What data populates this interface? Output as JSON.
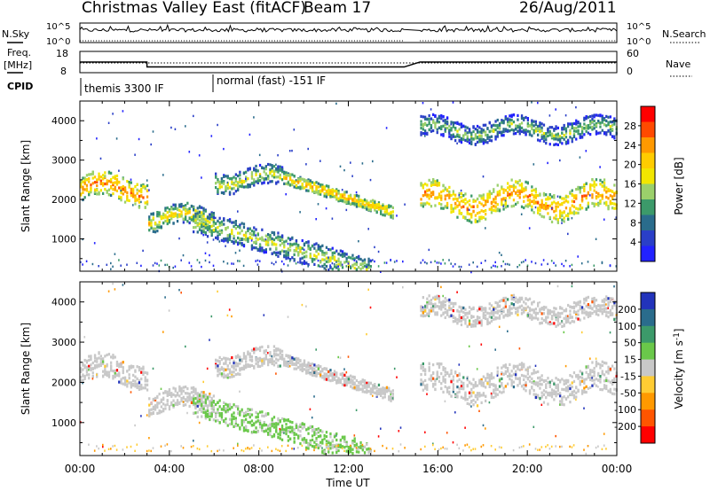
{
  "header": {
    "title": "Christmas Valley East (fitACF)",
    "beam": "Beam 17",
    "date": "26/Aug/2011"
  },
  "params": {
    "nsky_label": "N.Sky",
    "nsearch_label": "N.Search",
    "freq_label_1": "Freq.",
    "freq_label_2": "[MHz]",
    "nave_label": "Nave",
    "cpid_label": "CPID",
    "log_top": "10^5",
    "log_bottom": "10^0",
    "freq_ticks": [
      "18",
      "8"
    ],
    "nave_ticks": [
      "60",
      "0"
    ],
    "cpid_1": "themis 3300 IF",
    "cpid_2": "normal (fast) -151 IF"
  },
  "x_ticks": [
    "00:00",
    "04:00",
    "08:00",
    "12:00",
    "16:00",
    "20:00",
    "00:00"
  ],
  "x_label": "Time UT",
  "y_label": "Slant Range [km]",
  "y_ticks": [
    "4000",
    "3000",
    "2000",
    "1000"
  ],
  "power_scale": {
    "label": "Power [dB]",
    "ticks": [
      "28",
      "24",
      "20",
      "16",
      "12",
      "8",
      "4"
    ],
    "colors": [
      "#ff0000",
      "#ff4a00",
      "#ff9900",
      "#ffcc00",
      "#f2e600",
      "#9bd06b",
      "#3c9a6a",
      "#2a6c8c",
      "#2a3fc8",
      "#2222ff"
    ]
  },
  "velocity_scale": {
    "label": "Velocity [m s^-1]",
    "ticks": [
      "200",
      "100",
      "50",
      "15",
      "-15",
      "-50",
      "-100",
      "-200"
    ],
    "colors": [
      "#2233bb",
      "#2a6c8c",
      "#3c9a6a",
      "#6ac84a",
      "#c8c8c8",
      "#ffcc33",
      "#ff9900",
      "#ff5500",
      "#ff0000"
    ]
  },
  "chart_data": {
    "type": "heatmap",
    "title": "Christmas Valley East (fitACF)",
    "xlabel": "Time UT",
    "ylabel": "Slant Range [km]",
    "xlim_hours": [
      0,
      24
    ],
    "ylim_km": [
      180,
      4500
    ],
    "panels": [
      "Power [dB]",
      "Velocity [m s^-1]"
    ],
    "data_gap_hours": [
      14.5,
      15.2
    ],
    "echo_regions": [
      {
        "name": "",
        "t0": 0,
        "t1": 3,
        "r_center": 2300,
        "r_width": 300,
        "power": 24
      },
      {
        "name": "",
        "t0": 3,
        "t1": 6,
        "r_center": 1550,
        "r_width": 250,
        "power": 16
      },
      {
        "name": "",
        "t0": 6,
        "t1": 9,
        "r_center": 2550,
        "r_width": 250,
        "power": 12
      },
      {
        "name": "",
        "t0": 9,
        "t1": 14,
        "r_center": 1900,
        "r_width": 150,
        "power": 20
      },
      {
        "name": "",
        "t0": 5,
        "t1": 13,
        "r_center": 900,
        "r_width": 300,
        "power": 12
      },
      {
        "name": "",
        "t0": 15.2,
        "t1": 24,
        "r_center": 2000,
        "r_width": 350,
        "power": 24
      },
      {
        "name": "",
        "t0": 15.2,
        "t1": 24,
        "r_center": 3800,
        "r_width": 250,
        "power": 8
      }
    ],
    "cpid_segments": [
      {
        "label": "themis 3300 IF",
        "t0": 0,
        "t1": 6
      },
      {
        "label": "normal (fast) -151 IF",
        "t0": 6,
        "t1": 24
      }
    ],
    "frequency_mhz": [
      {
        "t0": 0,
        "t1": 3,
        "f": 13
      },
      {
        "t0": 3,
        "t1": 14.5,
        "f": 10.5
      },
      {
        "t0": 15.2,
        "t1": 24,
        "f": 13
      }
    ]
  }
}
